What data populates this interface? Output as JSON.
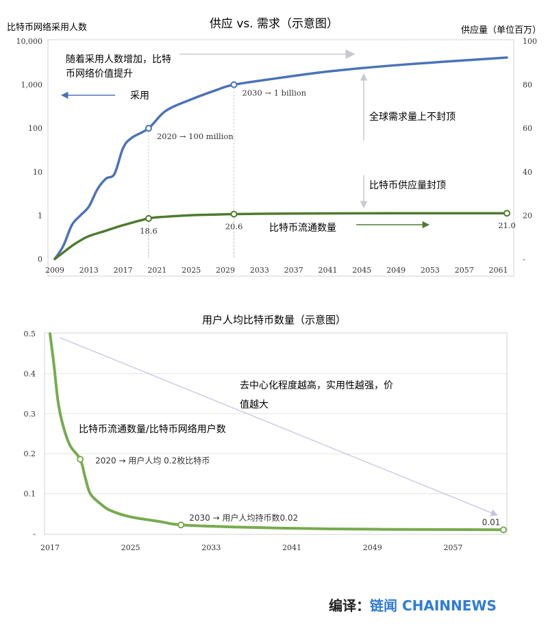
{
  "chart_data": [
    {
      "type": "line",
      "title": "供应 vs. 需求（示意图）",
      "y_left_label": "比特币网络采用人数",
      "y_right_label": "供应量（单位百万）",
      "x_ticks": [
        "2009",
        "2013",
        "2017",
        "2021",
        "2025",
        "2029",
        "2033",
        "2037",
        "2041",
        "2045",
        "2049",
        "2053",
        "2057",
        "2061"
      ],
      "y_left_ticks": [
        "0",
        "1",
        "10",
        "100",
        "1,000",
        "10,000"
      ],
      "y_left_scale": "log",
      "y_right_ticks": [
        "-",
        "20",
        "40",
        "60",
        "80",
        "100"
      ],
      "ylim_right": [
        0,
        100
      ],
      "grid": false,
      "series": [
        {
          "axis": "left",
          "color": "#4a72b8",
          "points": [
            [
              2009,
              0.1
            ],
            [
              2010,
              0.2
            ],
            [
              2011,
              0.6
            ],
            [
              2012,
              1.0
            ],
            [
              2013,
              1.6
            ],
            [
              2014,
              4
            ],
            [
              2015,
              7
            ],
            [
              2016,
              9
            ],
            [
              2017,
              35
            ],
            [
              2018,
              60
            ],
            [
              2020,
              100
            ],
            [
              2022,
              250
            ],
            [
              2025,
              460
            ],
            [
              2028,
              760
            ],
            [
              2030,
              1000
            ],
            [
              2035,
              1400
            ],
            [
              2040,
              1900
            ],
            [
              2045,
              2400
            ],
            [
              2050,
              2900
            ],
            [
              2055,
              3400
            ],
            [
              2062,
              4200
            ]
          ]
        },
        {
          "axis": "right",
          "color": "#4f7a2e",
          "points": [
            [
              2009,
              0
            ],
            [
              2010,
              3
            ],
            [
              2011,
              6
            ],
            [
              2012,
              8.5
            ],
            [
              2013,
              10.5
            ],
            [
              2015,
              13
            ],
            [
              2017,
              15.5
            ],
            [
              2020,
              18.6
            ],
            [
              2022,
              19.4
            ],
            [
              2025,
              20.1
            ],
            [
              2028,
              20.4
            ],
            [
              2030,
              20.6
            ],
            [
              2035,
              20.8
            ],
            [
              2040,
              20.9
            ],
            [
              2050,
              21.0
            ],
            [
              2062,
              21.0
            ]
          ]
        }
      ],
      "markers": [
        {
          "x": 2020,
          "y": 100,
          "axis": "left",
          "label": "2020 → 100 million",
          "color": "#4a72b8"
        },
        {
          "x": 2030,
          "y": 1000,
          "axis": "left",
          "label": "2030 → 1 billion",
          "color": "#4a72b8"
        },
        {
          "x": 2020,
          "y": 18.6,
          "axis": "right",
          "label": "18.6",
          "color": "#4f7a2e"
        },
        {
          "x": 2030,
          "y": 20.6,
          "axis": "right",
          "label": "20.6",
          "color": "#4f7a2e"
        },
        {
          "x": 2062,
          "y": 21.0,
          "axis": "right",
          "label": "21.0",
          "color": "#4f7a2e"
        }
      ],
      "annotations": [
        {
          "id": "adopt-growth",
          "text_lines": [
            "随着采用人数增加，比特",
            "币网络价值提升"
          ]
        },
        {
          "id": "adoption",
          "text": "采用"
        },
        {
          "id": "demand-uncapped",
          "text": "全球需求量上不封顶"
        },
        {
          "id": "supply-capped",
          "text": "比特币供应量封顶"
        },
        {
          "id": "circulating",
          "text": "比特币流通数量"
        }
      ]
    },
    {
      "type": "line",
      "title": "用户人均比特币数量（示意图）",
      "x_ticks": [
        "2017",
        "2025",
        "2033",
        "2041",
        "2049",
        "2057"
      ],
      "y_ticks": [
        "-",
        "0.1",
        "0.2",
        "0.3",
        "0.4",
        "0.5"
      ],
      "ylim": [
        0,
        0.5
      ],
      "grid": true,
      "series": [
        {
          "color": "#77ab4e",
          "points": [
            [
              2017,
              0.5
            ],
            [
              2017.4,
              0.42
            ],
            [
              2017.8,
              0.33
            ],
            [
              2018.3,
              0.27
            ],
            [
              2019,
              0.22
            ],
            [
              2020,
              0.186
            ],
            [
              2020.5,
              0.14
            ],
            [
              2021,
              0.1
            ],
            [
              2022,
              0.075
            ],
            [
              2023,
              0.058
            ],
            [
              2025,
              0.042
            ],
            [
              2028,
              0.03
            ],
            [
              2030,
              0.022
            ],
            [
              2035,
              0.017
            ],
            [
              2040,
              0.014
            ],
            [
              2045,
              0.012
            ],
            [
              2050,
              0.011
            ],
            [
              2055,
              0.0105
            ],
            [
              2062,
              0.0098
            ]
          ]
        }
      ],
      "markers": [
        {
          "x": 2020,
          "y": 0.186,
          "label": "2020 → 用户人均 0.2枚比特币"
        },
        {
          "x": 2030,
          "y": 0.022,
          "label": "2030 → 用户人均持币数0.02"
        },
        {
          "x": 2062,
          "y": 0.0098,
          "label": "0.01"
        }
      ],
      "annotations": [
        {
          "id": "decentralization",
          "text_lines": [
            "去中心化程度越高，实用性越强，价",
            "值越大"
          ]
        },
        {
          "id": "ratio",
          "text": "比特币流通数量/比特币网络用户数"
        }
      ]
    }
  ],
  "credit": {
    "label": "编译：",
    "brand": "链闻 CHAINNEWS"
  }
}
